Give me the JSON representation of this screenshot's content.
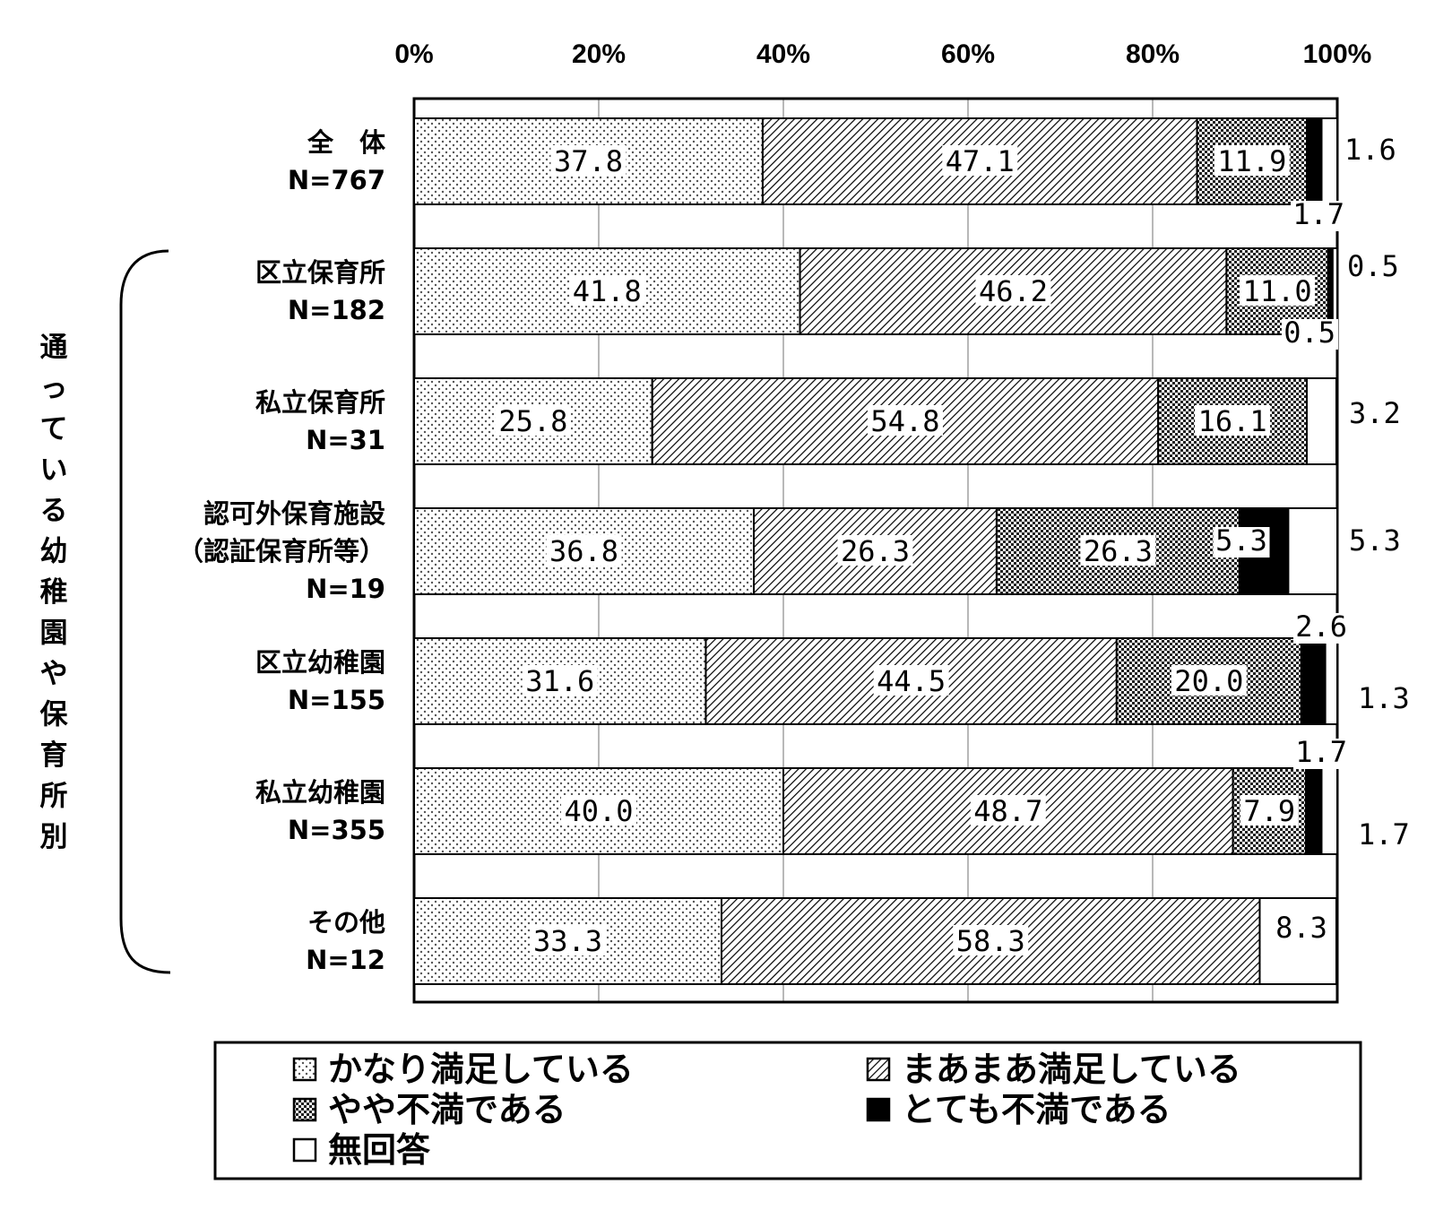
{
  "chart_data": {
    "type": "bar",
    "orientation": "horizontal",
    "stacked": true,
    "percent": true,
    "xlim": [
      0,
      100
    ],
    "x_ticks": [
      "0%",
      "20%",
      "40%",
      "60%",
      "80%",
      "100%"
    ],
    "grid": true,
    "legend_position": "bottom",
    "group_label": "通っている幼稚園や保育所別",
    "categories": [
      {
        "name": "全　体",
        "n": "N=767"
      },
      {
        "name": "区立保育所",
        "n": "N=182"
      },
      {
        "name": "私立保育所",
        "n": "N=31"
      },
      {
        "name": "認可外保育施設",
        "name2": "（認証保育所等）",
        "n": "N=19"
      },
      {
        "name": "区立幼稚園",
        "n": "N=155"
      },
      {
        "name": "私立幼稚園",
        "n": "N=355"
      },
      {
        "name": "その他",
        "n": "N=12"
      }
    ],
    "series": [
      {
        "name": "かなり満足している",
        "pattern": "dots",
        "values": [
          37.8,
          41.8,
          25.8,
          36.8,
          31.6,
          40.0,
          33.3
        ],
        "labels": [
          "37.8",
          "41.8",
          "25.8",
          "36.8",
          "31.6",
          "40.0",
          "33.3"
        ]
      },
      {
        "name": "まあまあ満足している",
        "pattern": "hatch",
        "values": [
          47.1,
          46.2,
          54.8,
          26.3,
          44.5,
          48.7,
          58.3
        ],
        "labels": [
          "47.1",
          "46.2",
          "54.8",
          "26.3",
          "44.5",
          "48.7",
          "58.3"
        ]
      },
      {
        "name": "やや不満である",
        "pattern": "checker",
        "values": [
          11.9,
          11.0,
          16.1,
          26.3,
          20.0,
          7.9,
          0
        ],
        "labels": [
          "11.9",
          "11.0",
          "16.1",
          "26.3",
          "20.0",
          "7.9",
          ""
        ]
      },
      {
        "name": "とても不満である",
        "pattern": "solid",
        "values": [
          1.6,
          0.5,
          0,
          5.3,
          2.6,
          1.7,
          0
        ],
        "labels": [
          "1.6",
          "0.5",
          "",
          "5.3",
          "2.6",
          "1.7",
          ""
        ]
      },
      {
        "name": "無回答",
        "pattern": "white",
        "values": [
          1.7,
          0.5,
          3.2,
          5.3,
          1.3,
          1.7,
          8.3
        ],
        "labels": [
          "1.7",
          "0.5",
          "3.2",
          "5.3",
          "1.3",
          "1.7",
          "8.3"
        ]
      }
    ]
  },
  "colors": {
    "ink": "#000000",
    "background": "#ffffff",
    "dots": "#555555",
    "checker": "#222222"
  }
}
